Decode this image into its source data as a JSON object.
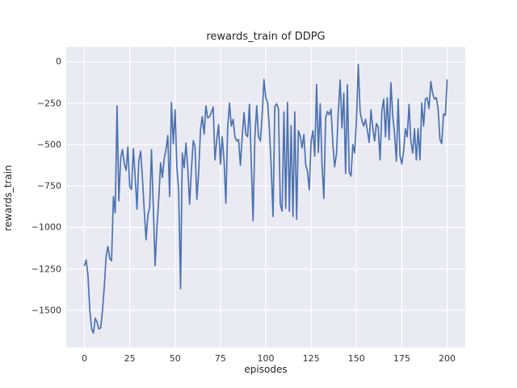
{
  "chart_data": {
    "type": "line",
    "title": "rewards_train of DDPG",
    "xlabel": "episodes",
    "ylabel": "rewards_train",
    "x_ticks": [
      0,
      25,
      50,
      75,
      100,
      125,
      150,
      175,
      200
    ],
    "y_ticks": [
      0,
      -250,
      -500,
      -750,
      -1000,
      -1250,
      -1500
    ],
    "xlim": [
      -10,
      210
    ],
    "ylim": [
      -1725,
      90
    ],
    "grid": true,
    "legend_position": "none",
    "line_color": "#4c72b0",
    "plot_bg": "#eaeaf2",
    "grid_color": "#ffffff",
    "fig_bg": "#ffffff",
    "text_color": "#262626",
    "tick_color": "#333333",
    "x": [
      0,
      1,
      2,
      3,
      4,
      5,
      6,
      7,
      8,
      9,
      10,
      11,
      12,
      13,
      14,
      15,
      16,
      17,
      18,
      19,
      20,
      21,
      22,
      23,
      24,
      25,
      26,
      27,
      28,
      29,
      30,
      31,
      32,
      33,
      34,
      35,
      36,
      37,
      38,
      39,
      40,
      41,
      42,
      43,
      44,
      45,
      46,
      47,
      48,
      49,
      50,
      51,
      52,
      53,
      54,
      55,
      56,
      57,
      58,
      59,
      60,
      61,
      62,
      63,
      64,
      65,
      66,
      67,
      68,
      69,
      70,
      71,
      72,
      73,
      74,
      75,
      76,
      77,
      78,
      79,
      80,
      81,
      82,
      83,
      84,
      85,
      86,
      87,
      88,
      89,
      90,
      91,
      92,
      93,
      94,
      95,
      96,
      97,
      98,
      99,
      100,
      101,
      102,
      103,
      104,
      105,
      106,
      107,
      108,
      109,
      110,
      111,
      112,
      113,
      114,
      115,
      116,
      117,
      118,
      119,
      120,
      121,
      122,
      123,
      124,
      125,
      126,
      127,
      128,
      129,
      130,
      131,
      132,
      133,
      134,
      135,
      136,
      137,
      138,
      139,
      140,
      141,
      142,
      143,
      144,
      145,
      146,
      147,
      148,
      149,
      150,
      151,
      152,
      153,
      154,
      155,
      156,
      157,
      158,
      159,
      160,
      161,
      162,
      163,
      164,
      165,
      166,
      167,
      168,
      169,
      170,
      171,
      172,
      173,
      174,
      175,
      176,
      177,
      178,
      179,
      180,
      181,
      182,
      183,
      184,
      185,
      186,
      187,
      188,
      189,
      190,
      191,
      192,
      193,
      194,
      195,
      196,
      197,
      198,
      199,
      200
    ],
    "values": [
      -1230,
      -1197,
      -1290,
      -1500,
      -1613,
      -1637,
      -1548,
      -1572,
      -1613,
      -1605,
      -1500,
      -1350,
      -1172,
      -1115,
      -1190,
      -1201,
      -813,
      -911,
      -266,
      -840,
      -580,
      -530,
      -617,
      -655,
      -515,
      -755,
      -770,
      -525,
      -690,
      -890,
      -600,
      -540,
      -700,
      -900,
      -1074,
      -927,
      -878,
      -530,
      -878,
      -1230,
      -1000,
      -829,
      -609,
      -698,
      -584,
      -527,
      -445,
      -813,
      -245,
      -495,
      -290,
      -640,
      -780,
      -1370,
      -551,
      -640,
      -490,
      -640,
      -860,
      -656,
      -476,
      -509,
      -830,
      -673,
      -411,
      -331,
      -437,
      -266,
      -339,
      -331,
      -306,
      -273,
      -592,
      -469,
      -380,
      -617,
      -453,
      -600,
      -854,
      -404,
      -249,
      -388,
      -347,
      -453,
      -478,
      -469,
      -625,
      -453,
      -306,
      -437,
      -453,
      -257,
      -600,
      -960,
      -453,
      -265,
      -453,
      -478,
      -323,
      -107,
      -217,
      -245,
      -404,
      -633,
      -934,
      -270,
      -253,
      -286,
      -861,
      -902,
      -302,
      -885,
      -245,
      -902,
      -384,
      -934,
      -302,
      -950,
      -416,
      -450,
      -520,
      -440,
      -620,
      -661,
      -772,
      -480,
      -416,
      -570,
      -138,
      -547,
      -253,
      -617,
      -825,
      -339,
      -300,
      -320,
      -286,
      -500,
      -634,
      -550,
      -300,
      -110,
      -400,
      -190,
      -674,
      -139,
      -666,
      -690,
      -500,
      -550,
      -350,
      -16,
      -300,
      -355,
      -388,
      -347,
      -412,
      -486,
      -290,
      -400,
      -478,
      -372,
      -396,
      -592,
      -300,
      -225,
      -453,
      -217,
      -470,
      -126,
      -327,
      -433,
      -600,
      -225,
      -567,
      -617,
      -535,
      -404,
      -453,
      -257,
      -478,
      -551,
      -404,
      -592,
      -404,
      -592,
      -249,
      -388,
      -224,
      -217,
      -282,
      -119,
      -192,
      -224,
      -217,
      -282,
      -469,
      -494,
      -315,
      -323,
      -110
    ]
  }
}
